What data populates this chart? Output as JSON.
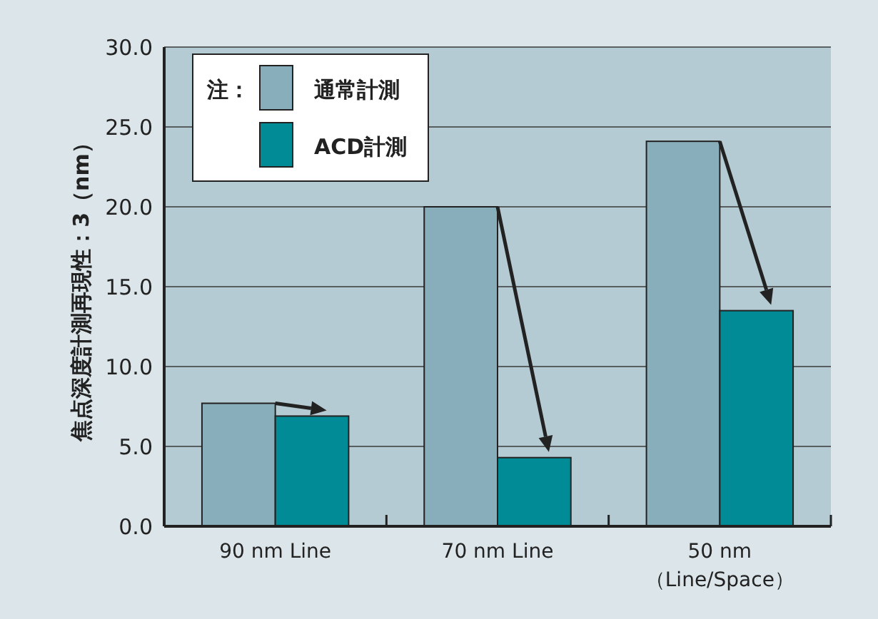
{
  "chart_data": {
    "type": "bar",
    "ylabel": "焦点深度計測再現性：3（nm）",
    "legend_title": "注：",
    "categories": [
      "90 nm Line",
      "70 nm Line",
      "50 nm\n（Line/Space）"
    ],
    "series": [
      {
        "name": "通常計測",
        "color": "#88aebb",
        "values": [
          7.7,
          20.0,
          24.1
        ]
      },
      {
        "name": "ACD計測",
        "color": "#008b96",
        "values": [
          6.9,
          4.3,
          13.5
        ]
      }
    ],
    "ylim": [
      0,
      30
    ],
    "yticks": [
      {
        "value": 0,
        "label": "0.0"
      },
      {
        "value": 5,
        "label": "5.0"
      },
      {
        "value": 10,
        "label": "10.0"
      },
      {
        "value": 15,
        "label": "15.0"
      },
      {
        "value": 20,
        "label": "20.0"
      },
      {
        "value": 25,
        "label": "25.0"
      },
      {
        "value": 30,
        "label": "30.0"
      }
    ],
    "grid": "y",
    "legend": "top left"
  }
}
